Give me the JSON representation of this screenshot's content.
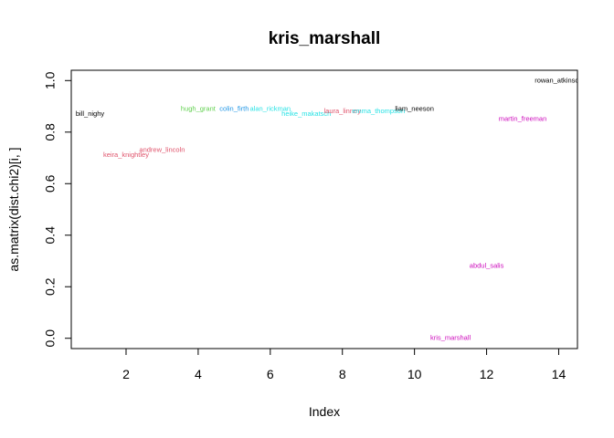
{
  "chart_data": {
    "type": "scatter",
    "title": "kris_marshall",
    "xlabel": "Index",
    "ylabel": "as.matrix(dist.chi2)[i, ]",
    "xlim": [
      0.48,
      14.52
    ],
    "ylim": [
      -0.04,
      1.04
    ],
    "x_ticks": [
      2,
      4,
      6,
      8,
      10,
      12,
      14
    ],
    "y_ticks": [
      0.0,
      0.2,
      0.4,
      0.6,
      0.8,
      1.0
    ],
    "x_tick_labels": [
      "2",
      "4",
      "6",
      "8",
      "10",
      "12",
      "14"
    ],
    "y_tick_labels": [
      "0.0",
      "0.2",
      "0.4",
      "0.6",
      "0.8",
      "1.0"
    ],
    "grid": false,
    "legend": "none",
    "points": [
      {
        "x": 1,
        "y": 0.87,
        "label": "bill_nighy",
        "color": "#000000"
      },
      {
        "x": 2,
        "y": 0.71,
        "label": "keira_knightley",
        "color": "#DF536B"
      },
      {
        "x": 3,
        "y": 0.73,
        "label": "andrew_lincoln",
        "color": "#DF536B"
      },
      {
        "x": 4,
        "y": 0.89,
        "label": "hugh_grant",
        "color": "#61D04F"
      },
      {
        "x": 5,
        "y": 0.89,
        "label": "colin_firth",
        "color": "#2297E6"
      },
      {
        "x": 6,
        "y": 0.89,
        "label": "alan_rickman",
        "color": "#28E2E5"
      },
      {
        "x": 7,
        "y": 0.87,
        "label": "heike_makatsch",
        "color": "#28E2E5"
      },
      {
        "x": 8,
        "y": 0.88,
        "label": "laura_linney",
        "color": "#DF536B"
      },
      {
        "x": 9,
        "y": 0.88,
        "label": "emma_thompson",
        "color": "#28E2E5"
      },
      {
        "x": 10,
        "y": 0.89,
        "label": "liam_neeson",
        "color": "#000000"
      },
      {
        "x": 11,
        "y": 0.0,
        "label": "kris_marshall",
        "color": "#CD0BBC"
      },
      {
        "x": 12,
        "y": 0.28,
        "label": "abdul_salis",
        "color": "#CD0BBC"
      },
      {
        "x": 13,
        "y": 0.85,
        "label": "martin_freeman",
        "color": "#CD0BBC"
      },
      {
        "x": 14,
        "y": 1.0,
        "label": "rowan_atkinson",
        "color": "#000000"
      }
    ]
  }
}
